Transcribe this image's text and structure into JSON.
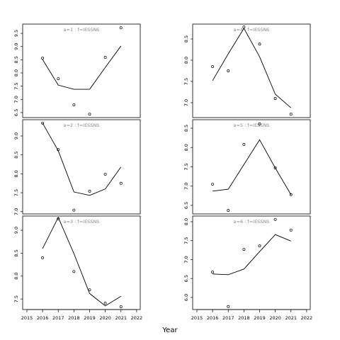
{
  "xlabel": "Year",
  "chart_data": [
    {
      "type": "line",
      "title": "a=1 : f=IESSNS",
      "x": [
        2016,
        2017,
        2018,
        2019,
        2020,
        2021
      ],
      "series": [
        {
          "mode": "markers",
          "color": "#000000",
          "values": [
            8.56,
            7.78,
            6.79,
            6.44,
            8.59,
            9.71
          ]
        },
        {
          "mode": "lines",
          "color": "#000000",
          "values": [
            8.51,
            7.54,
            7.38,
            7.38,
            8.21,
            9.02
          ]
        }
      ],
      "xlim": [
        2014.73,
        2022.23
      ],
      "ylim": [
        6.31,
        9.85
      ],
      "yticks": [
        6.5,
        {
          "value": 7,
          "label": "7.0"
        },
        7.5,
        {
          "value": 8,
          "label": "8.0"
        },
        8.5,
        {
          "value": 9,
          "label": "9.0"
        },
        9.5
      ]
    },
    {
      "type": "line",
      "title": "a=2 : f=IESSNS",
      "x": [
        2016,
        2017,
        2018,
        2019,
        2020,
        2021
      ],
      "series": [
        {
          "mode": "markers",
          "color": "#000000",
          "values": [
            9.34,
            8.64,
            7.04,
            7.54,
            7.99,
            7.75
          ]
        },
        {
          "mode": "lines",
          "color": "#000000",
          "values": [
            9.34,
            8.61,
            7.52,
            7.43,
            7.6,
            8.18
          ]
        }
      ],
      "xlim": [
        2014.73,
        2022.23
      ],
      "ylim": [
        6.94,
        9.43
      ],
      "yticks": [
        {
          "value": 7,
          "label": "7.0"
        },
        7.5,
        {
          "value": 8,
          "label": "8.0"
        },
        8.5,
        {
          "value": 9,
          "label": "9.0"
        }
      ]
    },
    {
      "type": "line",
      "title": "a=3 : f=IESSNS",
      "x": [
        2016,
        2017,
        2018,
        2019,
        2020,
        2021
      ],
      "series": [
        {
          "mode": "markers",
          "color": "#000000",
          "values": [
            8.4,
            9.25,
            8.1,
            7.7,
            7.41,
            7.33
          ]
        },
        {
          "mode": "lines",
          "color": "#000000",
          "values": [
            8.6,
            9.28,
            8.49,
            7.62,
            7.35,
            7.56
          ]
        }
      ],
      "xlim": [
        2014.73,
        2022.23
      ],
      "ylim": [
        7.27,
        9.31
      ],
      "yticks": [
        7.5,
        {
          "value": 8,
          "label": "8.0"
        },
        8.5,
        {
          "value": 9,
          "label": "9.0"
        }
      ],
      "xticks": [
        2015,
        2016,
        2017,
        2018,
        2019,
        2020,
        2021,
        2022
      ]
    },
    {
      "type": "line",
      "title": "a=4 : f=IESSNS",
      "x": [
        2016,
        2017,
        2018,
        2019,
        2020,
        2021
      ],
      "series": [
        {
          "mode": "markers",
          "color": "#000000",
          "values": [
            7.85,
            7.75,
            8.78,
            8.38,
            7.1,
            6.73
          ]
        },
        {
          "mode": "lines",
          "color": "#000000",
          "values": [
            7.52,
            8.15,
            8.75,
            8.08,
            7.2,
            6.88
          ]
        }
      ],
      "xlim": [
        2014.73,
        2022.23
      ],
      "ylim": [
        6.65,
        8.85
      ],
      "yticks": [
        {
          "value": 7,
          "label": "7.0"
        },
        7.5,
        {
          "value": 8,
          "label": "8.0"
        },
        8.5
      ]
    },
    {
      "type": "line",
      "title": "a=5 : f=IESSNS",
      "x": [
        2016,
        2017,
        2018,
        2019,
        2020,
        2021
      ],
      "series": [
        {
          "mode": "markers",
          "color": "#000000",
          "values": [
            7.05,
            6.37,
            8.08,
            8.61,
            7.47,
            6.78
          ]
        },
        {
          "mode": "lines",
          "color": "#000000",
          "values": [
            6.87,
            6.92,
            7.56,
            8.2,
            7.47,
            6.78
          ]
        }
      ],
      "xlim": [
        2014.73,
        2022.23
      ],
      "ylim": [
        6.28,
        8.72
      ],
      "yticks": [
        6.5,
        {
          "value": 7,
          "label": "7.0"
        },
        7.5,
        {
          "value": 8,
          "label": "8.0"
        },
        8.5
      ]
    },
    {
      "type": "line",
      "title": "a=6 : f=IESSNS",
      "x": [
        2016,
        2017,
        2018,
        2019,
        2020,
        2021
      ],
      "series": [
        {
          "mode": "markers",
          "color": "#000000",
          "values": [
            6.67,
            5.76,
            7.27,
            7.36,
            8.06,
            7.78
          ]
        },
        {
          "mode": "lines",
          "color": "#000000",
          "values": [
            6.62,
            6.6,
            6.75,
            7.21,
            7.66,
            7.49
          ]
        }
      ],
      "xlim": [
        2014.73,
        2022.23
      ],
      "ylim": [
        5.68,
        8.15
      ],
      "yticks": [
        {
          "value": 6,
          "label": "6.0"
        },
        6.5,
        {
          "value": 7,
          "label": "7.0"
        },
        7.5,
        {
          "value": 8,
          "label": "8.0"
        }
      ],
      "xticks": [
        2015,
        2016,
        2017,
        2018,
        2019,
        2020,
        2021,
        2022
      ]
    }
  ]
}
